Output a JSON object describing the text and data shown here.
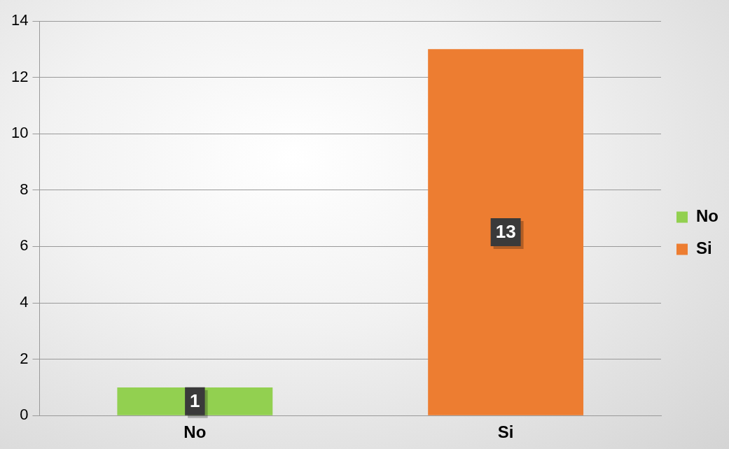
{
  "chart_data": {
    "type": "bar",
    "categories": [
      "No",
      "Si"
    ],
    "series": [
      {
        "name": "No",
        "color": "#92d050",
        "values": [
          1,
          null
        ]
      },
      {
        "name": "Si",
        "color": "#ed7d31",
        "values": [
          null,
          13
        ]
      }
    ],
    "ylim": [
      0,
      14
    ],
    "yticks": [
      0,
      2,
      4,
      6,
      8,
      10,
      12,
      14
    ],
    "grid": "y",
    "legend": "right",
    "data_labels": true
  }
}
